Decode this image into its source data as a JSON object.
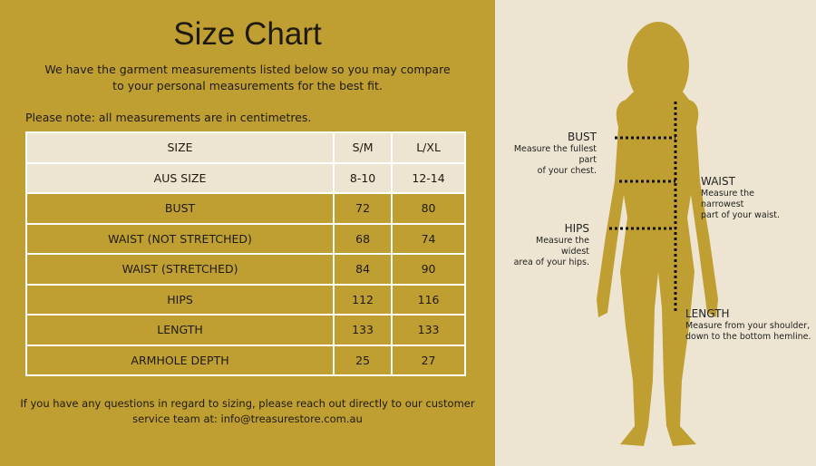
{
  "header": {
    "title": "Size Chart",
    "intro": [
      "We have the garment measurements listed below so you may compare",
      "to your personal measurements for the best fit."
    ]
  },
  "note": "Please note: all measurements are in centimetres.",
  "table": {
    "columns": [
      "SIZE",
      "S/M",
      "L/XL"
    ],
    "rows": [
      [
        "AUS SIZE",
        "8-10",
        "12-14"
      ],
      [
        "BUST",
        "72",
        "80"
      ],
      [
        "WAIST (NOT STRETCHED)",
        "68",
        "74"
      ],
      [
        "WAIST (STRETCHED)",
        "84",
        "90"
      ],
      [
        "HIPS",
        "112",
        "116"
      ],
      [
        "LENGTH",
        "133",
        "133"
      ],
      [
        "ARMHOLE DEPTH",
        "25",
        "27"
      ]
    ]
  },
  "footer": [
    "If you have any questions in regard to sizing, please reach out directly to our customer",
    "service team at: info@treasurestore.com.au"
  ],
  "diagram": {
    "bust": {
      "title": "BUST",
      "lines": [
        "Measure the fullest",
        "part",
        "of your chest."
      ]
    },
    "waist": {
      "title": "WAIST",
      "lines": [
        "Measure the",
        "narrowest",
        "part of your waist."
      ]
    },
    "hips": {
      "title": "HIPS",
      "lines": [
        "Measure the",
        "widest",
        "area of your hips."
      ]
    },
    "length": {
      "title": "LENGTH",
      "lines": [
        "Measure from your shoulder,",
        "down to the bottom hemline."
      ]
    }
  }
}
